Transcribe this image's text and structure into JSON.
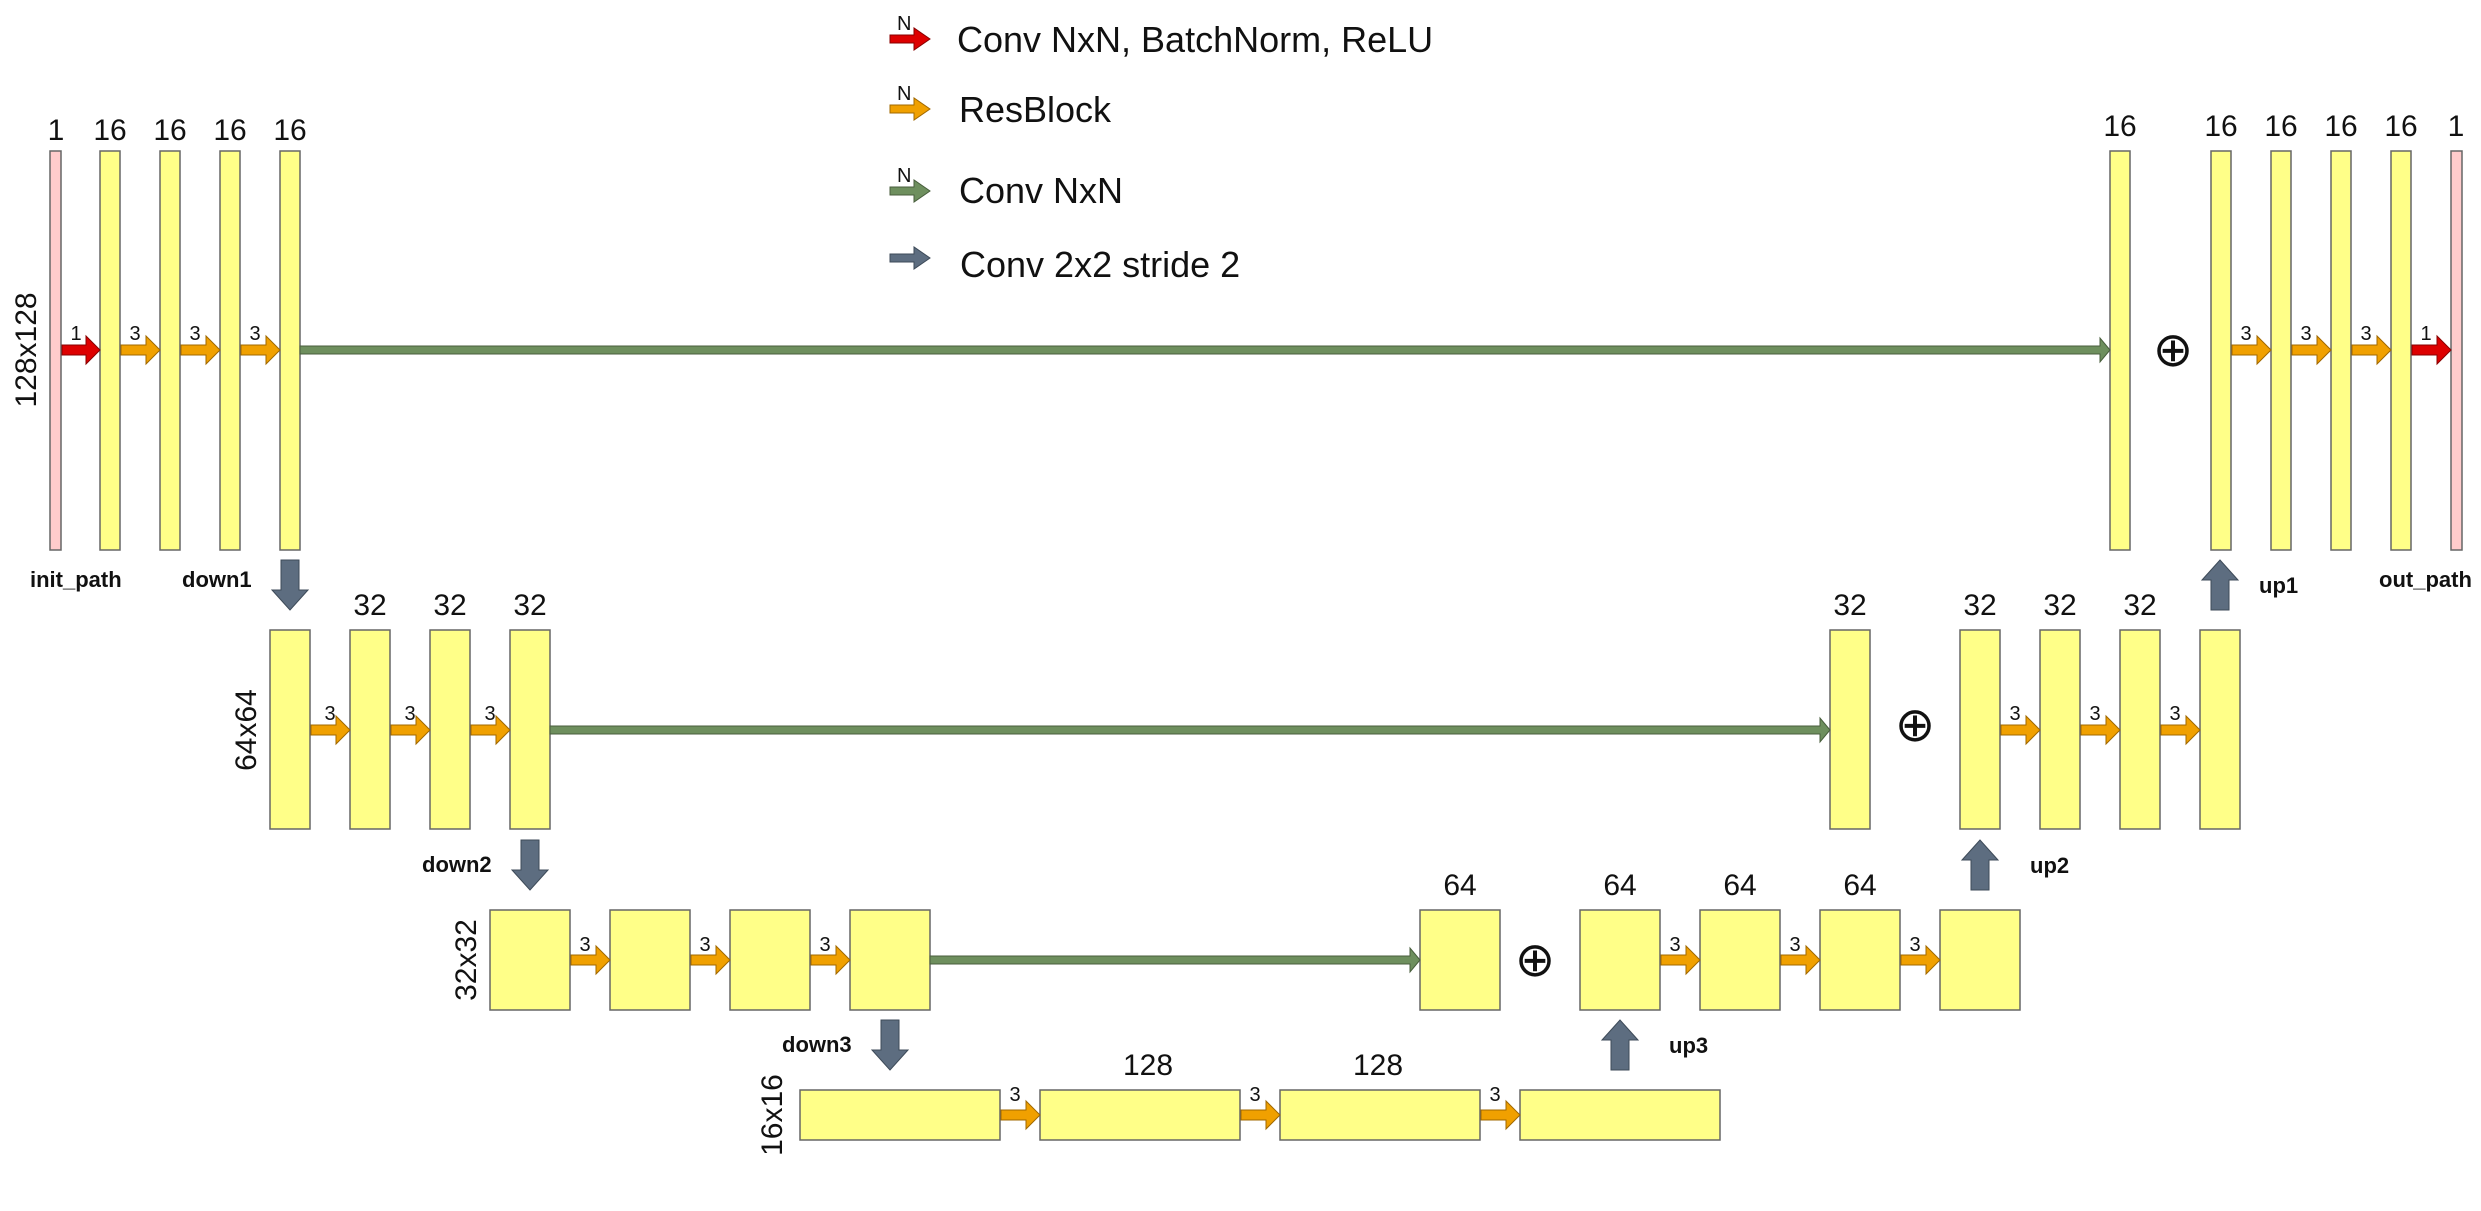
{
  "colors": {
    "feature_map": "#ffff88",
    "io_map": "#ffcccc",
    "conv_bn_relu": "#dd0000",
    "resblock": "#f0a000",
    "conv": "#6e8f5e",
    "conv_stride": "#5d6d80",
    "stroke": "#666666"
  },
  "legend": [
    {
      "kind": "conv_bn_relu",
      "tag": "N",
      "label": "Conv NxN, BatchNorm, ReLU"
    },
    {
      "kind": "resblock",
      "tag": "N",
      "label": "ResBlock"
    },
    {
      "kind": "conv",
      "tag": "N",
      "label": "Conv NxN"
    },
    {
      "kind": "conv_stride",
      "tag": "",
      "label": "Conv 2x2 stride 2"
    }
  ],
  "resolution_labels": [
    "128x128",
    "64x64",
    "32x32",
    "16x16"
  ],
  "block_labels": [
    "init_path",
    "down1",
    "down2",
    "down3",
    "up1",
    "up2",
    "up3",
    "out_path"
  ],
  "channel_labels": [
    "1",
    "16",
    "16",
    "16",
    "16",
    "16",
    "16",
    "16",
    "16",
    "16",
    "1",
    "32",
    "32",
    "32",
    "32",
    "32",
    "32",
    "32",
    "64",
    "64",
    "64",
    "64",
    "128",
    "128"
  ],
  "kernel_labels": [
    "1",
    "3",
    "3",
    "3",
    "3",
    "3",
    "3",
    "1",
    "3",
    "3",
    "3",
    "3",
    "3",
    "3",
    "3",
    "3",
    "3",
    "3",
    "3",
    "3",
    "3",
    "3",
    "3"
  ],
  "plus_symbol": "⊕"
}
